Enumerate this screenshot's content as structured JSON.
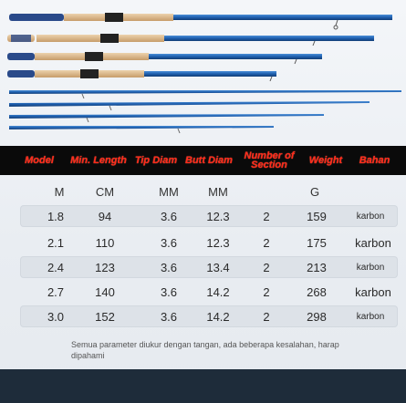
{
  "header": [
    "Model",
    "Min. Length",
    "Tip Diam",
    "Butt Diam",
    "Number of Section",
    "Weight",
    "Bahan"
  ],
  "units": [
    "M",
    "CM",
    "MM",
    "MM",
    "",
    "G",
    ""
  ],
  "rows": [
    {
      "model": "1.8",
      "length": "94",
      "tip": "3.6",
      "butt": "12.3",
      "sections": "2",
      "weight": "159",
      "material": "karbon"
    },
    {
      "model": "2.1",
      "length": "110",
      "tip": "3.6",
      "butt": "12.3",
      "sections": "2",
      "weight": "175",
      "material": "karbon"
    },
    {
      "model": "2.4",
      "length": "123",
      "tip": "3.6",
      "butt": "13.4",
      "sections": "2",
      "weight": "213",
      "material": "karbon"
    },
    {
      "model": "2.7",
      "length": "140",
      "tip": "3.6",
      "butt": "14.2",
      "sections": "2",
      "weight": "268",
      "material": "karbon"
    },
    {
      "model": "3.0",
      "length": "152",
      "tip": "3.6",
      "butt": "14.2",
      "sections": "2",
      "weight": "298",
      "material": "karbon"
    }
  ],
  "note": "Semua parameter diukur dengan tangan, ada beberapa kesalahan, harap dipahami",
  "colors": {
    "header_bg": "#0a0a0a",
    "header_text": "#ff2a1a",
    "rod_blue": "#1f5fae",
    "cork": "#d8b58a"
  }
}
